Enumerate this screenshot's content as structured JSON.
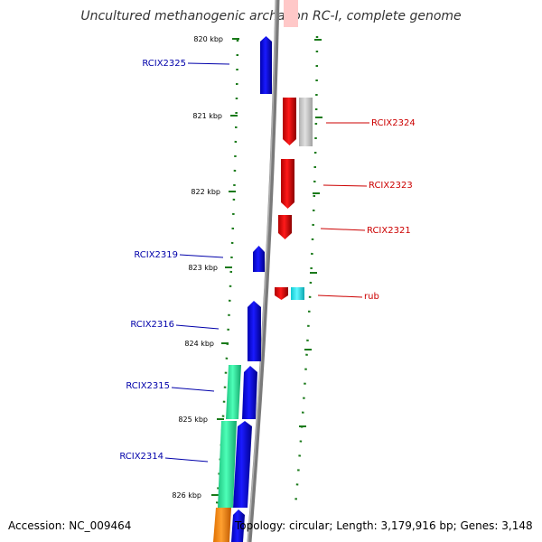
{
  "title": "Uncultured methanogenic archaeon RC-I, complete genome",
  "footer": {
    "accession": "Accession: NC_009464",
    "topology": "Topology: circular; Length: 3,179,916 bp; Genes: 3,148"
  },
  "scale_ticks": [
    "820 kbp",
    "821 kbp",
    "822 kbp",
    "823 kbp",
    "824 kbp",
    "825 kbp",
    "826 kbp"
  ],
  "genes_left": [
    {
      "label": "RCIX2325",
      "color": "#0000cc"
    },
    {
      "label": "RCIX2319",
      "color": "#0000cc"
    },
    {
      "label": "RCIX2316",
      "color": "#0000cc"
    },
    {
      "label": "RCIX2315",
      "color": "#0000cc"
    },
    {
      "label": "RCIX2314",
      "color": "#0000cc"
    }
  ],
  "genes_right": [
    {
      "label": "RCIX2324",
      "color": "#cc0000"
    },
    {
      "label": "RCIX2323",
      "color": "#cc0000"
    },
    {
      "label": "RCIX2321",
      "color": "#cc0000"
    },
    {
      "label": "rub",
      "color": "#cc0000"
    }
  ],
  "colors": {
    "backbone": "#8a8a8a",
    "forward_gene": "#0000e6",
    "reverse_gene": "#e60000",
    "grey_feature": "#c8c8c8",
    "cyan_feature": "#22e8ee",
    "green_feature": "#2ee8a0",
    "orange_feature": "#ff8c00",
    "dots": "#1a7a1a"
  }
}
